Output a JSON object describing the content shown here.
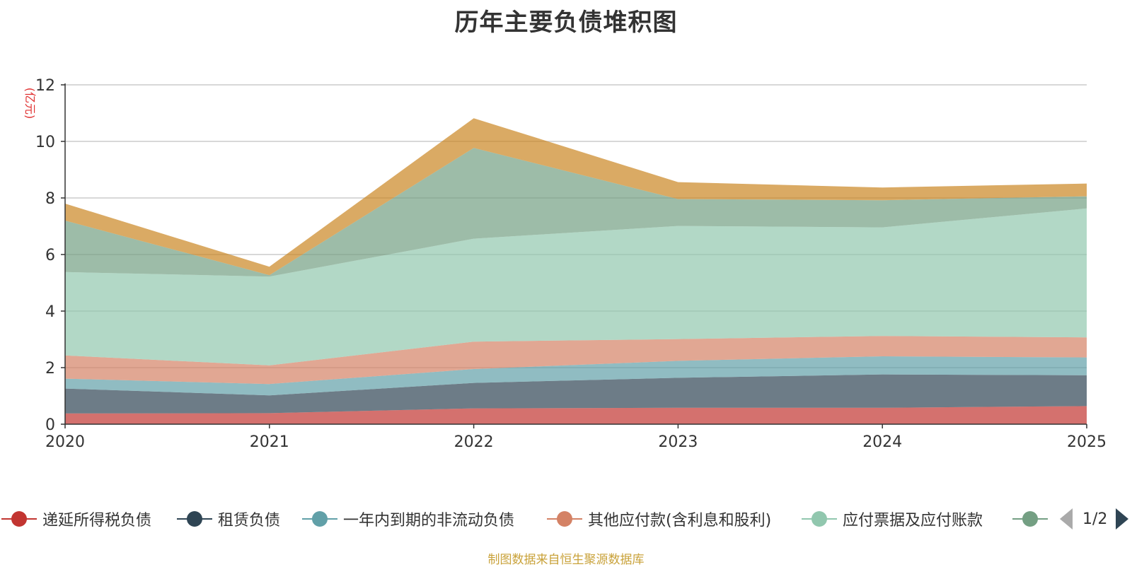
{
  "title": "历年主要负债堆积图",
  "source": "制图数据来自恒生聚源数据库",
  "legend": {
    "items": [
      {
        "label": "递延所得税负债",
        "color": "#c23531"
      },
      {
        "label": "租赁负债",
        "color": "#2f4554"
      },
      {
        "label": "一年内到期的非流动负债",
        "color": "#61a0a8"
      },
      {
        "label": "其他应付款(含利息和股利)",
        "color": "#d48265"
      },
      {
        "label": "应付票据及应付账款",
        "color": "#91c7ae"
      },
      {
        "label": "",
        "color": "#749f83"
      }
    ],
    "page": "1/2"
  },
  "chart_data": {
    "type": "area",
    "stacked": true,
    "title": "历年主要负债堆积图",
    "ylabel": "(亿元)",
    "xlabel": "",
    "ylim": [
      0,
      12
    ],
    "yticks": [
      "0",
      "2",
      "4",
      "6",
      "8",
      "10",
      "12"
    ],
    "categories": [
      "2020",
      "2021",
      "2022",
      "2023",
      "2024",
      "2025"
    ],
    "grid": true,
    "legend_position": "bottom",
    "series": [
      {
        "name": "递延所得税负债",
        "color": "#c23531",
        "values": [
          0.38,
          0.39,
          0.56,
          0.58,
          0.58,
          0.64
        ]
      },
      {
        "name": "租赁负债",
        "color": "#2f4554",
        "values": [
          0.88,
          0.63,
          0.9,
          1.06,
          1.18,
          1.09
        ]
      },
      {
        "name": "一年内到期的非流动负债",
        "color": "#61a0a8",
        "values": [
          0.35,
          0.4,
          0.49,
          0.6,
          0.64,
          0.63
        ]
      },
      {
        "name": "其他应付款(含利息和股利)",
        "color": "#d48265",
        "values": [
          0.82,
          0.66,
          0.97,
          0.77,
          0.72,
          0.71
        ]
      },
      {
        "name": "应付票据及应付账款",
        "color": "#91c7ae",
        "values": [
          2.95,
          3.14,
          3.64,
          4.0,
          3.84,
          4.56
        ]
      },
      {
        "name": "",
        "color": "#749f83",
        "values": [
          1.82,
          0.05,
          3.21,
          0.95,
          0.96,
          0.43
        ]
      },
      {
        "name": "",
        "color": "#ca8622",
        "values": [
          0.6,
          0.3,
          1.05,
          0.6,
          0.45,
          0.45
        ]
      }
    ]
  }
}
